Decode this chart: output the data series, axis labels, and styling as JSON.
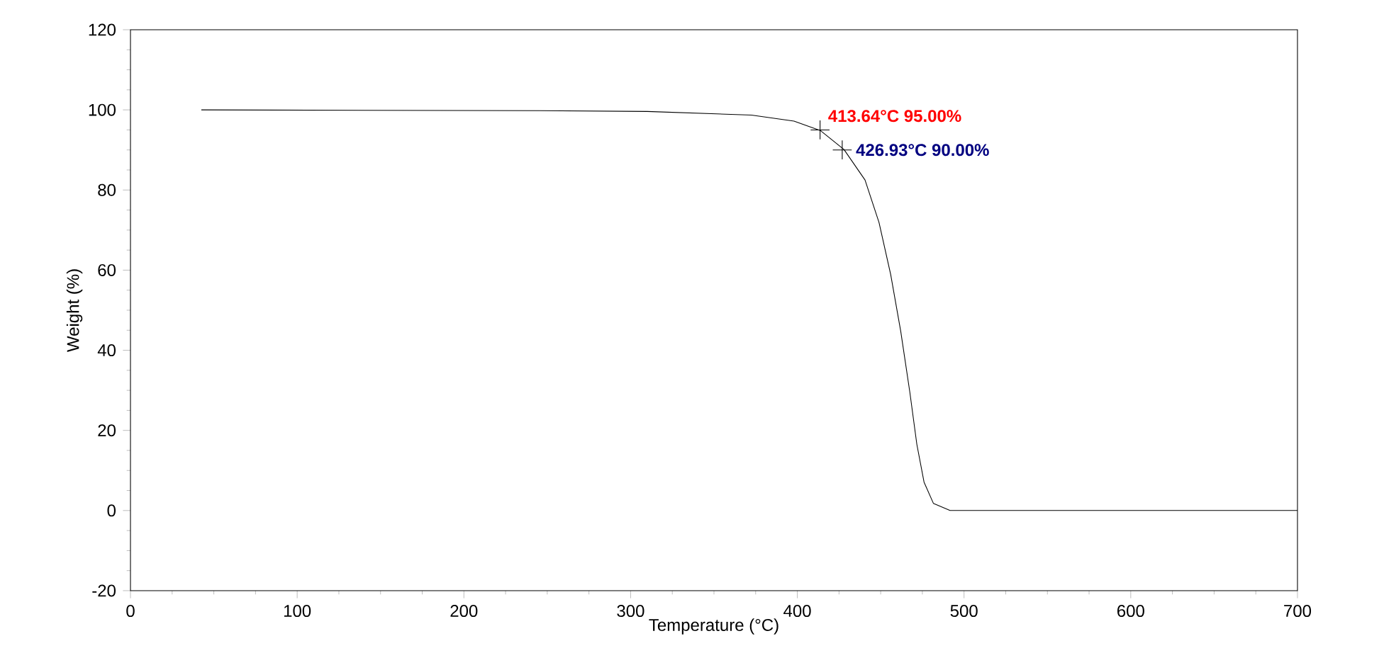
{
  "chart_data": {
    "type": "line",
    "xlabel": "Temperature (°C)",
    "ylabel": "Weight (%)",
    "xlim": [
      0,
      700
    ],
    "ylim": [
      -20,
      120
    ],
    "xticks": [
      0,
      100,
      200,
      300,
      400,
      500,
      600,
      700
    ],
    "yticks": [
      -20,
      0,
      20,
      40,
      60,
      80,
      100,
      120
    ],
    "series": [
      {
        "color": "#000000",
        "x": [
          42.5,
          245,
          310,
          372.5,
          398,
          414,
          428,
          440.6,
          449,
          456,
          462,
          467.5,
          471.7,
          476,
          481.6,
          491.6,
          700
        ],
        "values": [
          100,
          99.8,
          99.6,
          98.7,
          97.2,
          94.8,
          90.1,
          82.5,
          71.9,
          58.9,
          44.8,
          29.5,
          16.5,
          7.1,
          1.8,
          0,
          0
        ]
      }
    ],
    "annotations": [
      {
        "text": "413.64°C 95.00%",
        "x": 413.64,
        "y": 95
      },
      {
        "text": "426.93°C 90.00%",
        "x": 426.93,
        "y": 90
      }
    ],
    "grid": false,
    "marker": "none",
    "line_style": "solid"
  }
}
